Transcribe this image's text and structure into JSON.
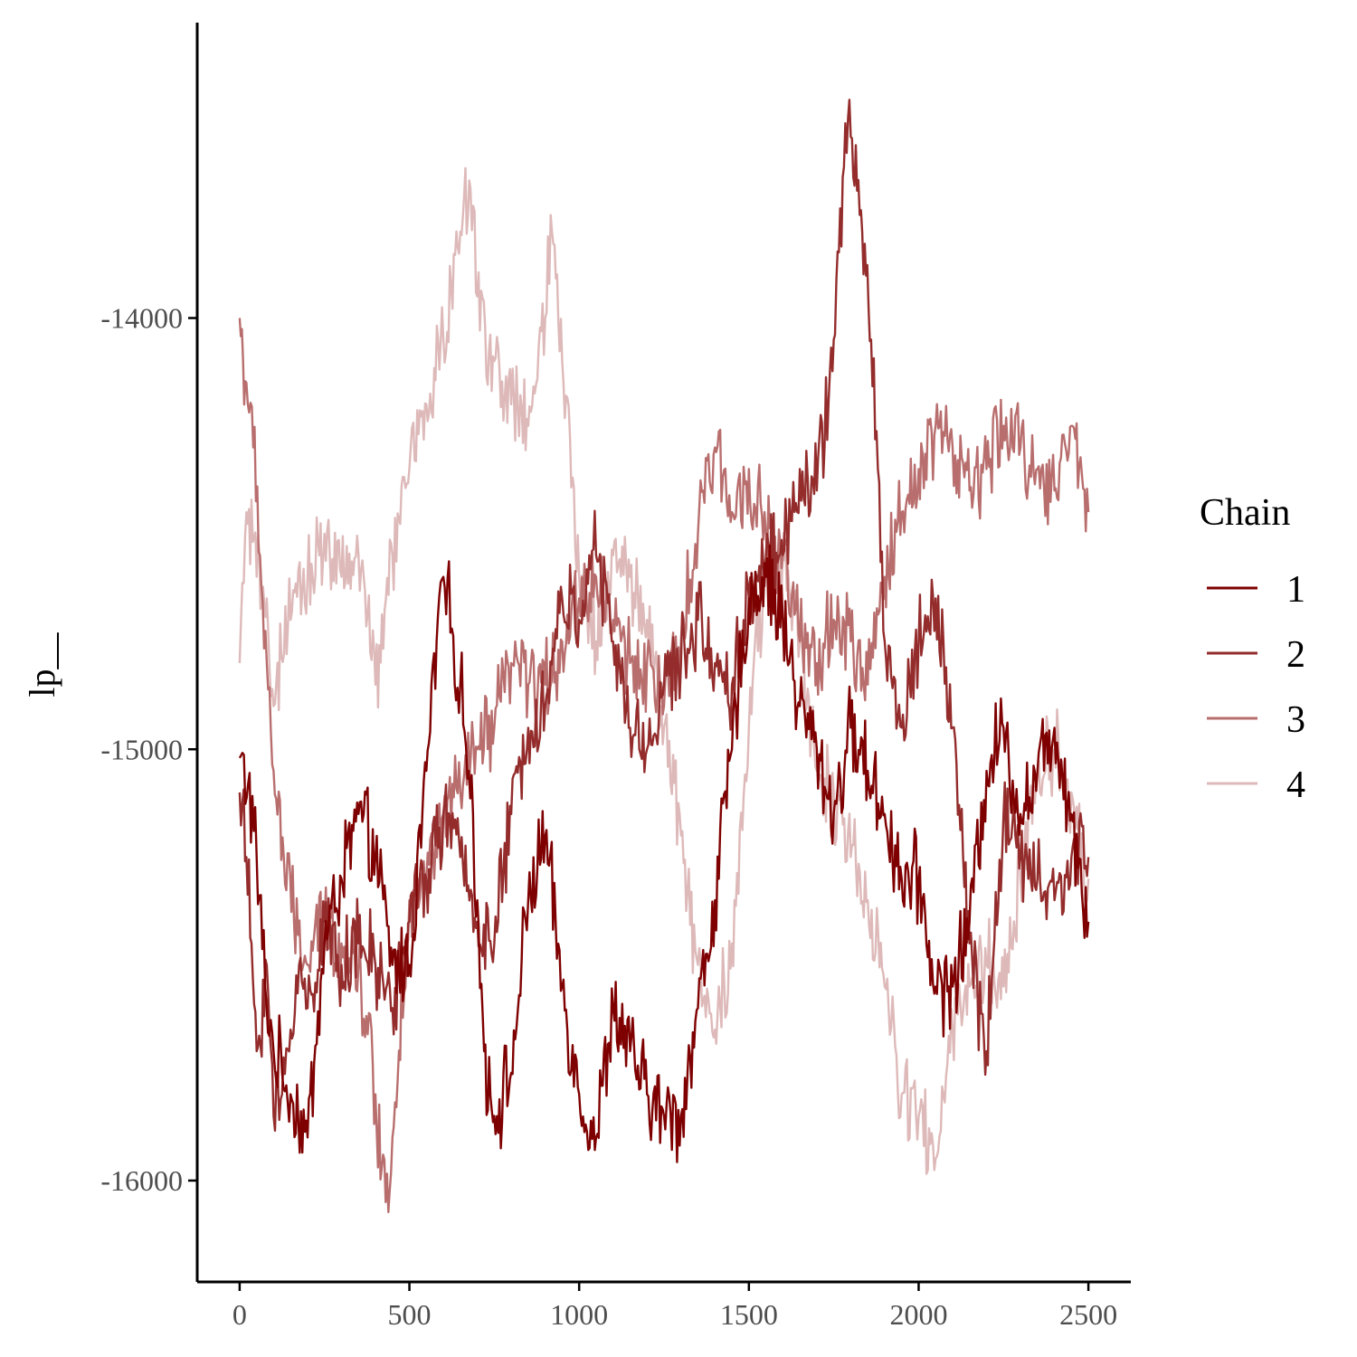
{
  "chart_data": {
    "type": "line",
    "title": "",
    "xlabel": "",
    "ylabel": "lp__",
    "xlim": [
      -125,
      2625
    ],
    "ylim": [
      -16235,
      -13315
    ],
    "x_ticks": [
      0,
      500,
      1000,
      1500,
      2000,
      2500
    ],
    "x_tick_labels": [
      "0",
      "500",
      "1000",
      "1500",
      "2000",
      "2500"
    ],
    "y_ticks": [
      -14000,
      -15000,
      -16000
    ],
    "y_tick_labels": [
      "-14000",
      "-15000",
      "-16000"
    ],
    "grid": false,
    "legend": {
      "title": "Chain",
      "position": "right"
    },
    "series": [
      {
        "name": "1",
        "color": "#7f0000",
        "x": [
          0,
          25,
          50,
          75,
          100,
          125,
          150,
          200,
          250,
          300,
          350,
          400,
          450,
          500,
          550,
          580,
          600,
          625,
          650,
          675,
          700,
          720,
          750,
          800,
          850,
          900,
          950,
          1000,
          1050,
          1100,
          1150,
          1200,
          1250,
          1300,
          1350,
          1400,
          1450,
          1500,
          1550,
          1600,
          1650,
          1700,
          1750,
          1800,
          1850,
          1900,
          1950,
          2000,
          2050,
          2100,
          2150,
          2200,
          2250,
          2300,
          2350,
          2400,
          2450,
          2500
        ],
        "y": [
          -15020,
          -15080,
          -15250,
          -15550,
          -15700,
          -15750,
          -15800,
          -15900,
          -15450,
          -15300,
          -15150,
          -15250,
          -15500,
          -15500,
          -15050,
          -14750,
          -14600,
          -14720,
          -14850,
          -15050,
          -15350,
          -15700,
          -15850,
          -15750,
          -15350,
          -15200,
          -15550,
          -15800,
          -15900,
          -15600,
          -15700,
          -15800,
          -15850,
          -15850,
          -15600,
          -15350,
          -15000,
          -14650,
          -14600,
          -14700,
          -14900,
          -15000,
          -15150,
          -14950,
          -15050,
          -15150,
          -15300,
          -15300,
          -15550,
          -15550,
          -15400,
          -15050,
          -14950,
          -15150,
          -15050,
          -14950,
          -15150,
          -15400
        ]
      },
      {
        "name": "2",
        "color": "#942c2c",
        "x": [
          0,
          20,
          50,
          80,
          100,
          125,
          150,
          175,
          200,
          250,
          300,
          350,
          400,
          450,
          500,
          550,
          600,
          650,
          700,
          750,
          800,
          850,
          900,
          950,
          1000,
          1030,
          1050,
          1100,
          1150,
          1200,
          1250,
          1300,
          1350,
          1400,
          1450,
          1500,
          1550,
          1600,
          1650,
          1700,
          1750,
          1780,
          1800,
          1830,
          1860,
          1880,
          1900,
          1950,
          2000,
          2050,
          2100,
          2150,
          2200,
          2250,
          2300,
          2350,
          2400,
          2450,
          2500
        ],
        "y": [
          -15100,
          -15250,
          -15700,
          -15500,
          -15850,
          -15800,
          -15650,
          -15500,
          -15600,
          -15400,
          -15500,
          -15450,
          -15500,
          -15600,
          -15400,
          -15300,
          -15150,
          -15250,
          -15400,
          -15450,
          -15150,
          -14950,
          -14900,
          -14650,
          -14700,
          -14550,
          -14550,
          -14750,
          -14950,
          -15000,
          -14850,
          -14800,
          -14700,
          -14800,
          -14850,
          -14650,
          -14550,
          -14550,
          -14350,
          -14400,
          -14050,
          -13650,
          -13580,
          -13750,
          -14050,
          -14350,
          -14750,
          -14950,
          -14750,
          -14650,
          -14950,
          -15450,
          -15700,
          -15150,
          -15250,
          -15300,
          -15350,
          -15250,
          -15250
        ]
      },
      {
        "name": "3",
        "color": "#b96e6e",
        "x": [
          0,
          10,
          20,
          40,
          60,
          80,
          100,
          130,
          160,
          200,
          250,
          300,
          350,
          400,
          430,
          450,
          500,
          550,
          600,
          650,
          700,
          750,
          800,
          850,
          900,
          950,
          1000,
          1050,
          1100,
          1150,
          1200,
          1250,
          1300,
          1350,
          1400,
          1450,
          1500,
          1550,
          1600,
          1650,
          1700,
          1750,
          1800,
          1850,
          1900,
          1950,
          2000,
          2050,
          2100,
          2150,
          2200,
          2250,
          2300,
          2350,
          2400,
          2450,
          2500
        ],
        "y": [
          -14000,
          -14100,
          -14150,
          -14300,
          -14550,
          -14800,
          -15050,
          -15250,
          -15400,
          -15500,
          -15400,
          -15450,
          -15500,
          -15800,
          -16050,
          -15900,
          -15350,
          -15300,
          -15150,
          -15100,
          -15000,
          -14950,
          -14800,
          -14850,
          -14850,
          -14750,
          -14650,
          -14600,
          -14700,
          -14800,
          -14800,
          -14900,
          -14750,
          -14500,
          -14300,
          -14450,
          -14350,
          -14500,
          -14550,
          -14750,
          -14800,
          -14700,
          -14750,
          -14850,
          -14600,
          -14450,
          -14350,
          -14250,
          -14300,
          -14400,
          -14350,
          -14250,
          -14300,
          -14350,
          -14400,
          -14250,
          -14450
        ]
      },
      {
        "name": "4",
        "color": "#deb9b9",
        "x": [
          0,
          20,
          50,
          80,
          100,
          150,
          200,
          250,
          300,
          350,
          400,
          450,
          500,
          550,
          600,
          650,
          680,
          700,
          750,
          800,
          850,
          900,
          920,
          950,
          1000,
          1050,
          1100,
          1150,
          1200,
          1250,
          1300,
          1350,
          1400,
          1450,
          1500,
          1550,
          1600,
          1650,
          1700,
          1750,
          1800,
          1850,
          1900,
          1950,
          2000,
          2050,
          2100,
          2150,
          2200,
          2250,
          2300,
          2350,
          2400,
          2450,
          2500
        ],
        "y": [
          -14800,
          -14450,
          -14600,
          -14650,
          -14900,
          -14700,
          -14600,
          -14500,
          -14600,
          -14550,
          -14850,
          -14550,
          -14350,
          -14200,
          -14050,
          -13800,
          -13700,
          -13950,
          -14100,
          -14200,
          -14250,
          -14000,
          -13800,
          -14100,
          -14600,
          -14750,
          -14550,
          -14600,
          -14700,
          -14950,
          -15200,
          -15500,
          -15650,
          -15450,
          -14950,
          -14600,
          -14550,
          -14750,
          -15050,
          -15100,
          -15250,
          -15350,
          -15550,
          -15800,
          -15850,
          -15950,
          -15650,
          -15550,
          -15500,
          -15550,
          -15300,
          -15050,
          -15000,
          -15100,
          -15300
        ]
      }
    ]
  }
}
